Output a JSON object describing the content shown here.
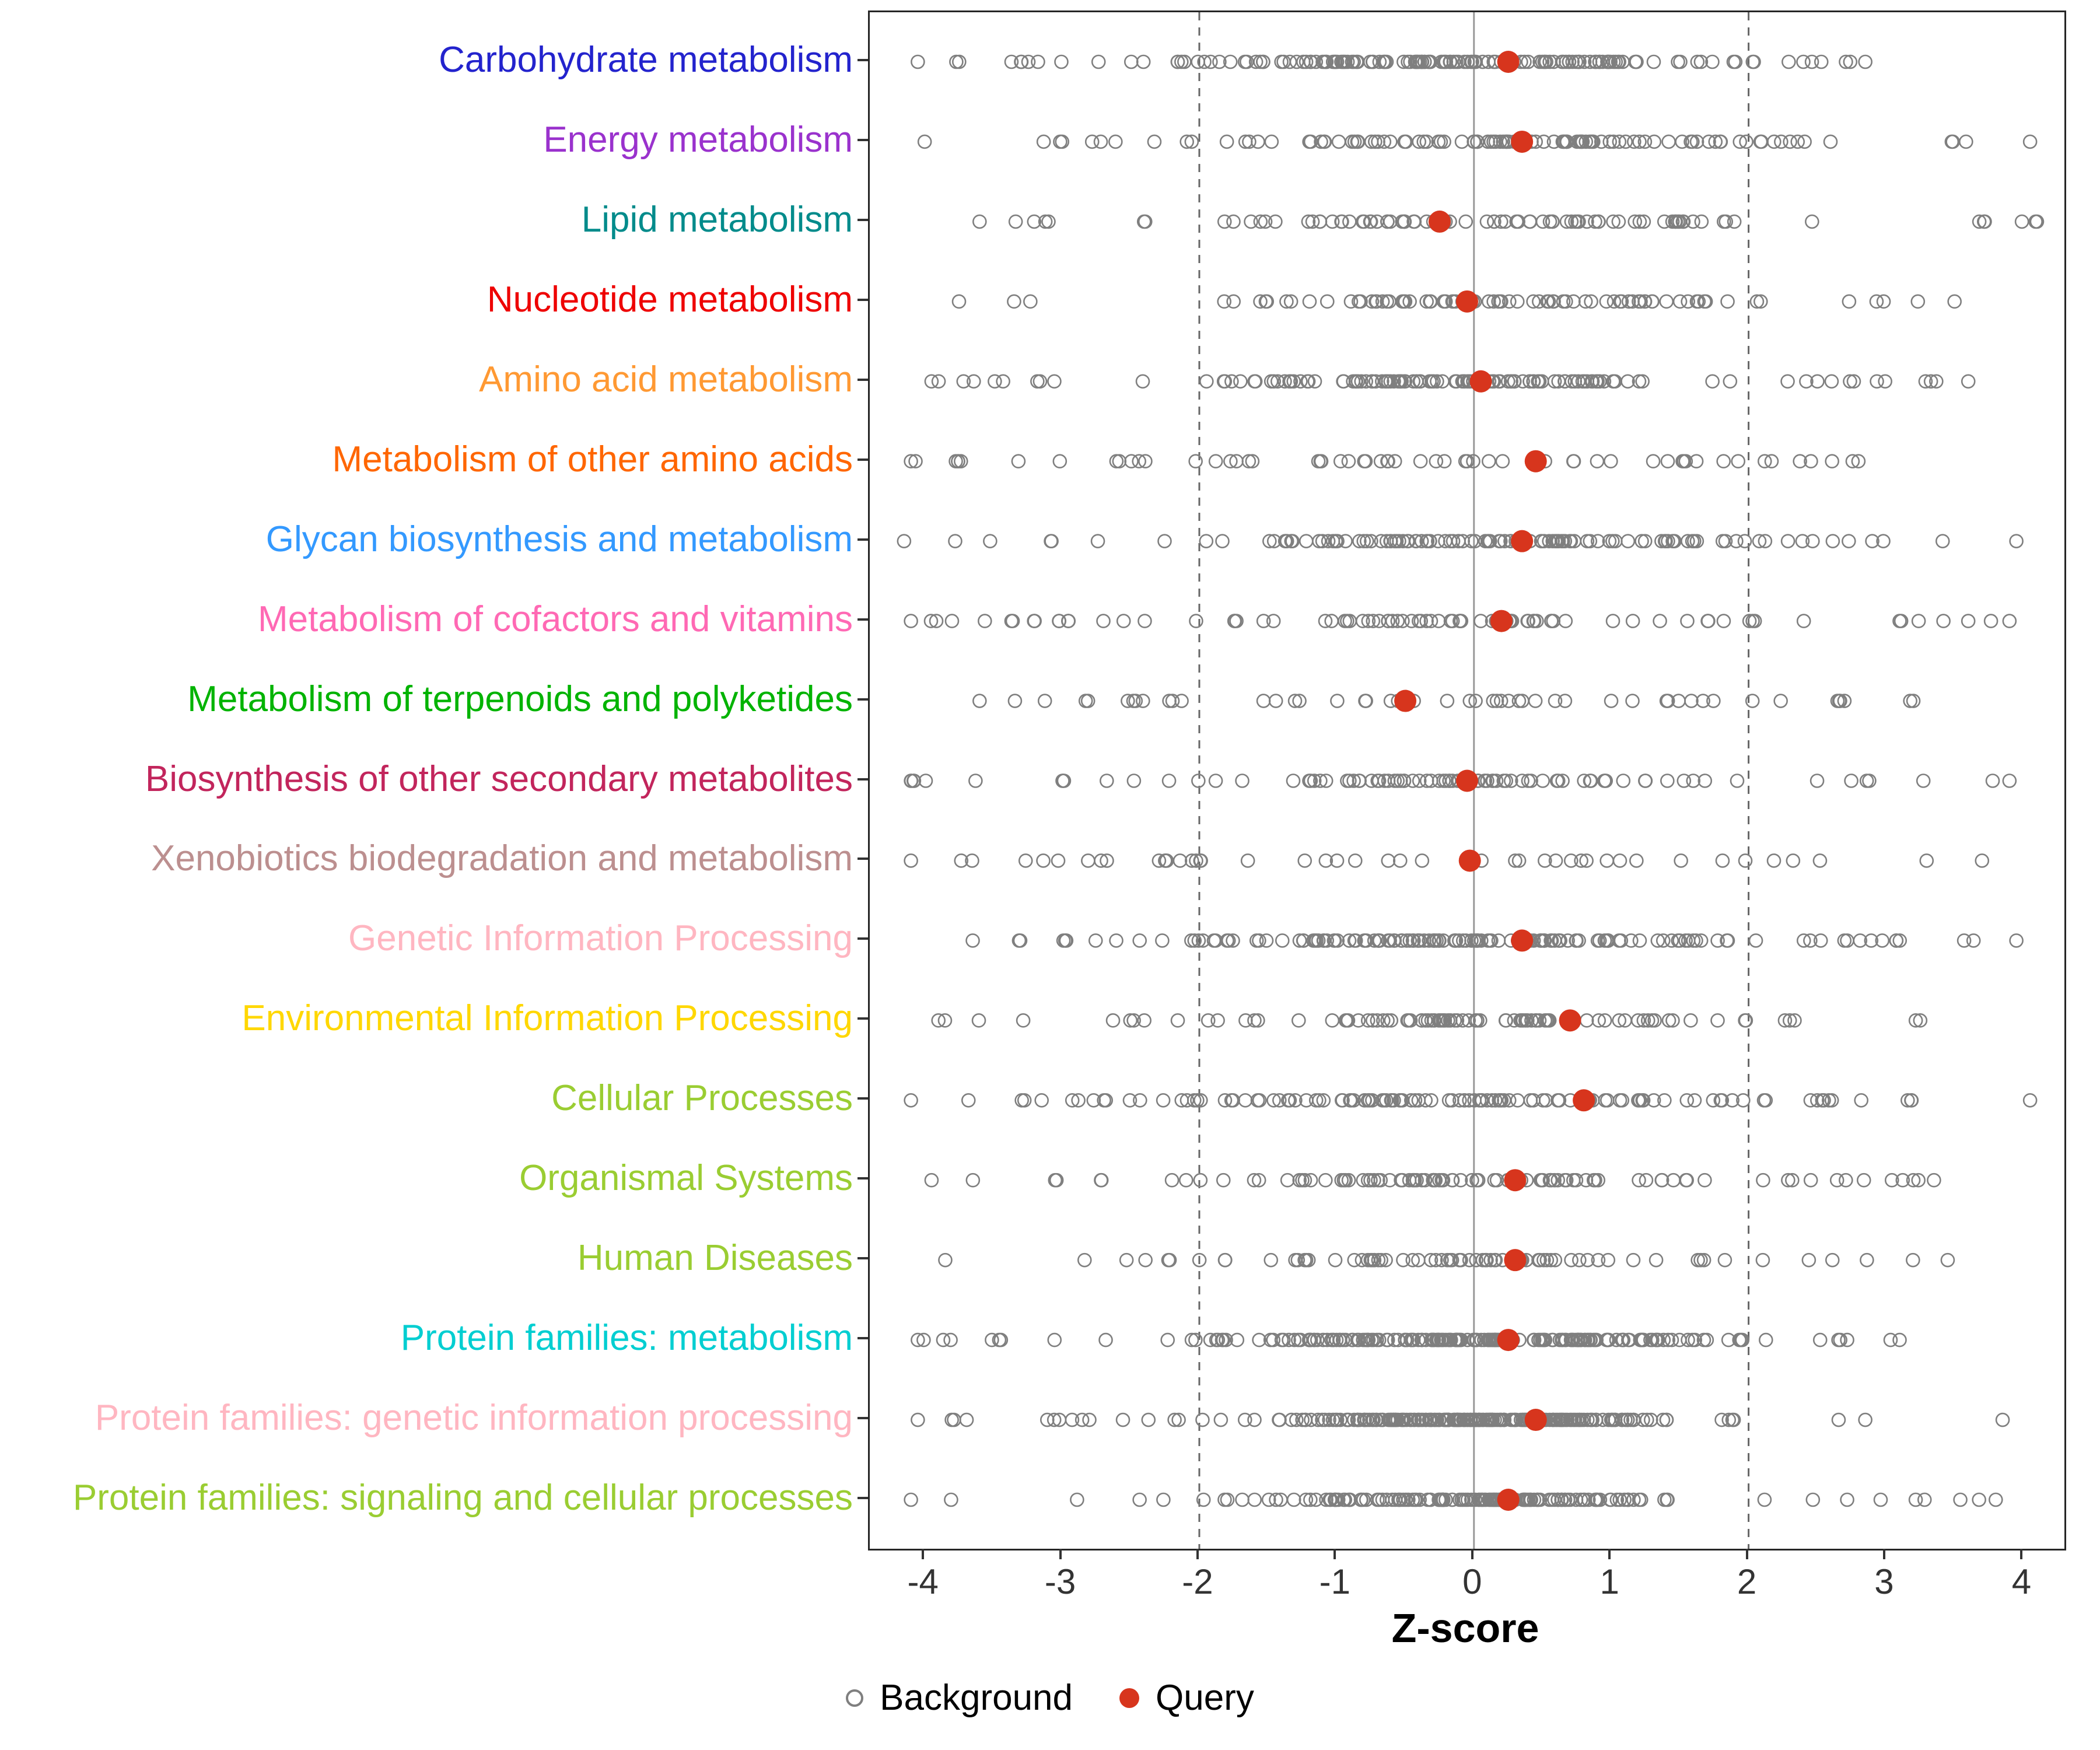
{
  "chart_data": {
    "type": "scatter",
    "subtype": "strip-plot",
    "title": "",
    "xlabel": "Z-score",
    "xlim": [
      -4.4,
      4.3
    ],
    "x_ticks": [
      -4,
      -3,
      -2,
      -1,
      0,
      1,
      2,
      3,
      4
    ],
    "reference_lines": {
      "dashed": [
        -2,
        2
      ],
      "solid": [
        0
      ]
    },
    "legend": {
      "background_label": "Background",
      "query_label": "Query"
    },
    "colors": {
      "query": "#D7351D",
      "background_stroke": "#7F7F7F",
      "dashed_line": "#666666",
      "zero_line": "#999999",
      "axis_text": "#333333",
      "panel_border": "#262626"
    },
    "categories": [
      {
        "label": "Carbohydrate metabolism",
        "color": "#2323CD",
        "query": 0.25,
        "background": {
          "n": 160,
          "sd": 0.95,
          "min": -4.05,
          "max": 2.85,
          "uniform_frac": 0.25
        }
      },
      {
        "label": "Energy metabolism",
        "color": "#9A32CD",
        "query": 0.35,
        "background": {
          "n": 110,
          "sd": 1.0,
          "min": -4.0,
          "max": 4.05,
          "uniform_frac": 0.3
        }
      },
      {
        "label": "Lipid metabolism",
        "color": "#008B8B",
        "query": -0.25,
        "background": {
          "n": 90,
          "sd": 1.0,
          "min": -3.6,
          "max": 4.1,
          "uniform_frac": 0.3
        }
      },
      {
        "label": "Nucleotide metabolism",
        "color": "#EE0000",
        "query": -0.05,
        "background": {
          "n": 85,
          "sd": 1.0,
          "min": -3.75,
          "max": 3.5,
          "uniform_frac": 0.3
        }
      },
      {
        "label": "Amino acid metabolism",
        "color": "#FF9933",
        "query": 0.05,
        "background": {
          "n": 130,
          "sd": 1.0,
          "min": -3.95,
          "max": 3.6,
          "uniform_frac": 0.25
        }
      },
      {
        "label": "Metabolism of other amino acids",
        "color": "#FF6600",
        "query": 0.45,
        "background": {
          "n": 60,
          "sd": 1.3,
          "min": -4.1,
          "max": 2.8,
          "uniform_frac": 0.55
        }
      },
      {
        "label": "Glycan biosynthesis and metabolism",
        "color": "#3399FF",
        "query": 0.35,
        "background": {
          "n": 120,
          "sd": 1.0,
          "min": -4.15,
          "max": 3.95,
          "uniform_frac": 0.3
        }
      },
      {
        "label": "Metabolism of cofactors and vitamins",
        "color": "#FF69B4",
        "query": 0.2,
        "background": {
          "n": 85,
          "sd": 1.1,
          "min": -4.1,
          "max": 3.9,
          "uniform_frac": 0.35
        }
      },
      {
        "label": "Metabolism of terpenoids and polyketides",
        "color": "#00B300",
        "query": -0.5,
        "background": {
          "n": 50,
          "sd": 1.3,
          "min": -3.6,
          "max": 3.2,
          "uniform_frac": 0.6
        }
      },
      {
        "label": "Biosynthesis of other secondary metabolites",
        "color": "#C2255C",
        "query": -0.05,
        "background": {
          "n": 90,
          "sd": 1.0,
          "min": -4.1,
          "max": 3.9,
          "uniform_frac": 0.3
        }
      },
      {
        "label": "Xenobiotics biodegradation and metabolism",
        "color": "#BC8F8F",
        "query": -0.03,
        "background": {
          "n": 45,
          "sd": 1.4,
          "min": -4.1,
          "max": 3.7,
          "uniform_frac": 0.6
        }
      },
      {
        "label": "Genetic Information Processing",
        "color": "#FFB6C1",
        "query": 0.35,
        "background": {
          "n": 150,
          "sd": 0.9,
          "min": -3.65,
          "max": 3.95,
          "uniform_frac": 0.25
        }
      },
      {
        "label": "Environmental Information Processing",
        "color": "#FFD700",
        "query": 0.7,
        "background": {
          "n": 90,
          "sd": 1.0,
          "min": -3.9,
          "max": 3.25,
          "uniform_frac": 0.3
        }
      },
      {
        "label": "Cellular Processes",
        "color": "#9ACD32",
        "query": 0.8,
        "background": {
          "n": 120,
          "sd": 1.0,
          "min": -4.1,
          "max": 4.05,
          "uniform_frac": 0.3
        }
      },
      {
        "label": "Organismal Systems",
        "color": "#9ACD32",
        "query": 0.3,
        "background": {
          "n": 100,
          "sd": 1.0,
          "min": -3.95,
          "max": 3.35,
          "uniform_frac": 0.3
        }
      },
      {
        "label": "Human Diseases",
        "color": "#9ACD32",
        "query": 0.3,
        "background": {
          "n": 80,
          "sd": 1.0,
          "min": -3.85,
          "max": 3.45,
          "uniform_frac": 0.3
        }
      },
      {
        "label": "Protein families: metabolism",
        "color": "#00CED1",
        "query": 0.25,
        "background": {
          "n": 210,
          "sd": 0.85,
          "min": -4.05,
          "max": 3.1,
          "uniform_frac": 0.2
        }
      },
      {
        "label": "Protein families: genetic information processing",
        "color": "#FFB6C1",
        "query": 0.45,
        "background": {
          "n": 230,
          "sd": 0.8,
          "min": -4.05,
          "max": 3.85,
          "uniform_frac": 0.2
        }
      },
      {
        "label": "Protein families: signaling and cellular processes",
        "color": "#9ACD32",
        "query": 0.25,
        "background": {
          "n": 160,
          "sd": 0.85,
          "min": -4.1,
          "max": 3.8,
          "uniform_frac": 0.2
        }
      }
    ]
  }
}
